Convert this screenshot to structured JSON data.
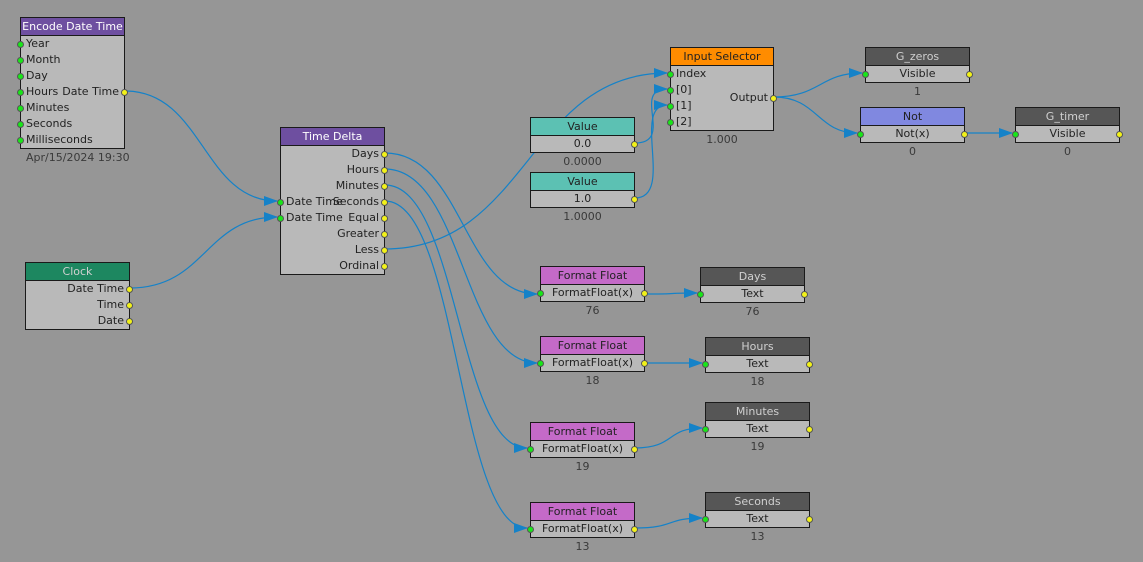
{
  "colors": {
    "wire": "#1582c8",
    "purple": "#6e4fa0",
    "green": "#1d8760",
    "dark": "#565656",
    "orange": "#ff8c00",
    "teal": "#5cc1b3",
    "pink": "#c46ac8",
    "lavender": "#8088e0"
  },
  "nodes": [
    {
      "id": "encode-date-time",
      "title": "Encode Date Time",
      "header": "purple",
      "text": "#ffffff",
      "rows": [
        {
          "in": "Year"
        },
        {
          "in": "Month"
        },
        {
          "in": "Day"
        },
        {
          "in": "Hours",
          "out": "Date Time"
        },
        {
          "in": "Minutes"
        },
        {
          "in": "Seconds"
        },
        {
          "in": "Milliseconds"
        }
      ],
      "caption": "Apr/15/2024 19:30"
    },
    {
      "id": "clock",
      "title": "Clock",
      "header": "green",
      "text": "#d0d0d0",
      "rows": [
        {
          "out": "Date Time"
        },
        {
          "out": "Time"
        },
        {
          "out": "Date"
        }
      ]
    },
    {
      "id": "time-delta",
      "title": "Time Delta",
      "header": "purple",
      "text": "#ffffff",
      "rows": [
        {
          "out": "Days"
        },
        {
          "out": "Hours"
        },
        {
          "out": "Minutes"
        },
        {
          "in": "Date Time",
          "out": "Seconds"
        },
        {
          "in": "Date Time",
          "out": "Equal"
        },
        {
          "out": "Greater"
        },
        {
          "out": "Less"
        },
        {
          "out": "Ordinal"
        }
      ]
    },
    {
      "id": "input-selector",
      "title": "Input Selector",
      "header": "orange",
      "text": "#222222",
      "rows": [
        {
          "in": "Index"
        },
        {
          "in": "[0]"
        },
        {
          "in": "[1]"
        },
        {
          "in": "[2]"
        }
      ],
      "output": "Output",
      "caption": "1.000"
    },
    {
      "id": "value-0",
      "title": "Value",
      "header": "teal",
      "text": "#222222",
      "center": "0.0",
      "cin": false,
      "cout": true,
      "caption": "0.0000"
    },
    {
      "id": "value-1",
      "title": "Value",
      "header": "teal",
      "text": "#222222",
      "center": "1.0",
      "cin": false,
      "cout": true,
      "caption": "1.0000"
    },
    {
      "id": "g-zeros",
      "title": "G_zeros",
      "header": "dark",
      "text": "#d0d0d0",
      "center": "Visible",
      "cin": true,
      "cout": true,
      "caption": "1"
    },
    {
      "id": "not",
      "title": "Not",
      "header": "lavender",
      "text": "#222222",
      "center": "Not(x)",
      "cin": true,
      "cout": true,
      "caption": "0"
    },
    {
      "id": "g-timer",
      "title": "G_timer",
      "header": "dark",
      "text": "#d0d0d0",
      "center": "Visible",
      "cin": true,
      "cout": true,
      "caption": "0"
    },
    {
      "id": "format-float-days",
      "title": "Format Float",
      "header": "pink",
      "text": "#222222",
      "center": "FormatFloat(x)",
      "cin": true,
      "cout": true,
      "caption": "76"
    },
    {
      "id": "days",
      "title": "Days",
      "header": "dark",
      "text": "#d0d0d0",
      "center": "Text",
      "cin": true,
      "cout": true,
      "caption": "76"
    },
    {
      "id": "format-float-hours",
      "title": "Format Float",
      "header": "pink",
      "text": "#222222",
      "center": "FormatFloat(x)",
      "cin": true,
      "cout": true,
      "caption": "18"
    },
    {
      "id": "hours",
      "title": "Hours",
      "header": "dark",
      "text": "#d0d0d0",
      "center": "Text",
      "cin": true,
      "cout": true,
      "caption": "18"
    },
    {
      "id": "format-float-minutes",
      "title": "Format Float",
      "header": "pink",
      "text": "#222222",
      "center": "FormatFloat(x)",
      "cin": true,
      "cout": true,
      "caption": "19"
    },
    {
      "id": "minutes",
      "title": "Minutes",
      "header": "dark",
      "text": "#d0d0d0",
      "center": "Text",
      "cin": true,
      "cout": true,
      "caption": "19"
    },
    {
      "id": "format-float-seconds",
      "title": "Format Float",
      "header": "pink",
      "text": "#222222",
      "center": "FormatFloat(x)",
      "cin": true,
      "cout": true,
      "caption": "13"
    },
    {
      "id": "seconds",
      "title": "Seconds",
      "header": "dark",
      "text": "#d0d0d0",
      "center": "Text",
      "cin": true,
      "cout": true,
      "caption": "13"
    }
  ]
}
